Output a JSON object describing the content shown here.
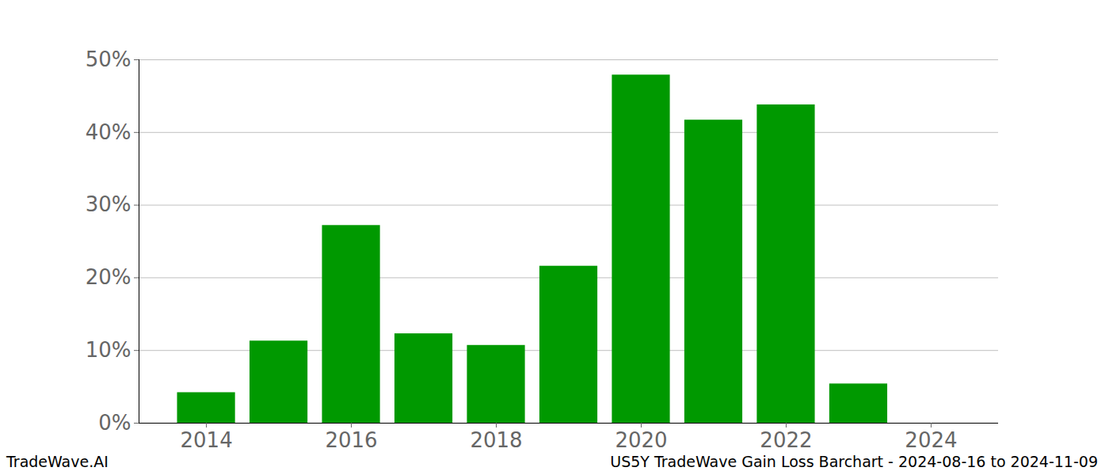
{
  "chart_data": {
    "type": "bar",
    "title": "US5Y TradeWave Gain Loss Barchart - 2024-08-16 to 2024-11-09",
    "source": "TradeWave.AI",
    "x": [
      2014,
      2015,
      2016,
      2017,
      2018,
      2019,
      2020,
      2021,
      2022,
      2023,
      2024
    ],
    "values": [
      4.2,
      11.3,
      27.2,
      12.3,
      10.7,
      21.6,
      47.9,
      41.7,
      43.8,
      5.4,
      0
    ],
    "color": "#009900",
    "xlim": [
      2013.07,
      2024.93
    ],
    "xticks": [
      2014,
      2016,
      2018,
      2020,
      2022,
      2024
    ],
    "ylim": [
      0,
      50
    ],
    "yticks": [
      {
        "value": 0,
        "label": "0%"
      },
      {
        "value": 10,
        "label": "10%"
      },
      {
        "value": 20,
        "label": "20%"
      },
      {
        "value": 30,
        "label": "30%"
      },
      {
        "value": 40,
        "label": "40%"
      },
      {
        "value": 50,
        "label": "50%"
      }
    ],
    "grid": true
  }
}
